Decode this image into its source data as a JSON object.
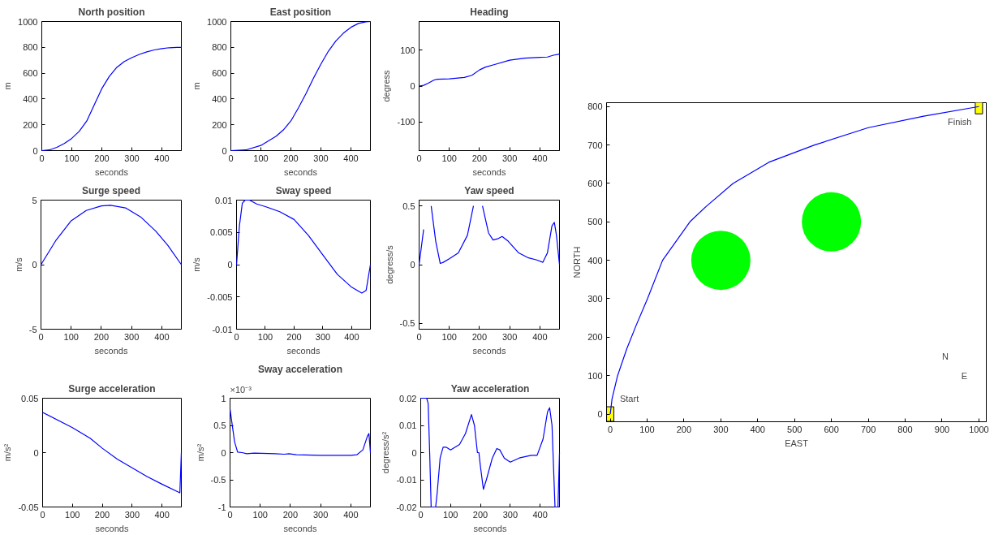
{
  "chart_data": [
    {
      "type": "line",
      "title": "North position",
      "xlabel": "seconds",
      "ylabel": "m",
      "xlim": [
        0,
        465
      ],
      "xticks": [
        0,
        100,
        200,
        300,
        400
      ],
      "ylim": [
        0,
        1000
      ],
      "yticks": [
        0,
        200,
        400,
        600,
        800,
        1000
      ],
      "color": "#0000ff",
      "x": [
        0,
        25,
        50,
        75,
        100,
        125,
        150,
        175,
        200,
        225,
        250,
        275,
        300,
        325,
        350,
        375,
        400,
        425,
        450,
        465
      ],
      "values": [
        0,
        5,
        25,
        55,
        95,
        150,
        230,
        355,
        480,
        575,
        645,
        690,
        720,
        745,
        765,
        780,
        790,
        797,
        800,
        800
      ]
    },
    {
      "type": "line",
      "title": "East position",
      "xlabel": "seconds",
      "ylabel": "m",
      "xlim": [
        0,
        465
      ],
      "xticks": [
        0,
        100,
        200,
        300,
        400
      ],
      "ylim": [
        0,
        1000
      ],
      "yticks": [
        0,
        200,
        400,
        600,
        800,
        1000
      ],
      "color": "#0000ff",
      "x": [
        0,
        50,
        100,
        150,
        175,
        200,
        225,
        250,
        275,
        300,
        325,
        350,
        375,
        400,
        425,
        450,
        465
      ],
      "values": [
        0,
        5,
        40,
        110,
        160,
        230,
        330,
        440,
        560,
        670,
        770,
        850,
        910,
        955,
        985,
        998,
        1000
      ]
    },
    {
      "type": "line",
      "title": "Heading",
      "xlabel": "seconds",
      "ylabel": "degress",
      "xlim": [
        0,
        465
      ],
      "xticks": [
        0,
        100,
        200,
        300,
        400
      ],
      "ylim": [
        -180,
        180
      ],
      "yticks": [
        -100,
        0,
        100
      ],
      "color": "#0000ff",
      "x": [
        0,
        15,
        30,
        50,
        60,
        100,
        150,
        175,
        200,
        220,
        250,
        300,
        350,
        400,
        425,
        445,
        465
      ],
      "values": [
        0,
        2,
        8,
        17,
        19,
        20,
        24,
        30,
        45,
        53,
        60,
        72,
        78,
        80,
        81,
        86,
        89
      ]
    },
    {
      "type": "line",
      "title": "Surge speed",
      "xlabel": "seconds",
      "ylabel": "m/s",
      "xlim": [
        0,
        465
      ],
      "xticks": [
        0,
        100,
        200,
        300,
        400
      ],
      "ylim": [
        -5,
        5
      ],
      "yticks": [
        -5,
        0,
        5
      ],
      "color": "#0000ff",
      "x": [
        0,
        50,
        100,
        150,
        200,
        230,
        280,
        330,
        380,
        420,
        465
      ],
      "values": [
        0,
        1.9,
        3.4,
        4.2,
        4.55,
        4.6,
        4.4,
        3.7,
        2.6,
        1.5,
        0
      ]
    },
    {
      "type": "line",
      "title": "Sway speed",
      "xlabel": "seconds",
      "ylabel": "m/s",
      "xlim": [
        0,
        465
      ],
      "xticks": [
        0,
        100,
        200,
        300,
        400
      ],
      "ylim": [
        -0.01,
        0.01
      ],
      "yticks": [
        -0.01,
        -0.005,
        0,
        0.005,
        0.01
      ],
      "color": "#0000ff",
      "x": [
        0,
        10,
        20,
        30,
        45,
        70,
        100,
        150,
        200,
        250,
        300,
        350,
        400,
        435,
        450,
        465
      ],
      "values": [
        0,
        0.006,
        0.0095,
        0.01,
        0.01,
        0.0094,
        0.009,
        0.0082,
        0.007,
        0.0045,
        0.0015,
        -0.0015,
        -0.0035,
        -0.0044,
        -0.004,
        0
      ]
    },
    {
      "type": "line",
      "title": "Yaw speed",
      "xlabel": "seconds",
      "ylabel": "degress/s",
      "xlim": [
        0,
        465
      ],
      "xticks": [
        0,
        100,
        200,
        300,
        400
      ],
      "ylim": [
        -0.55,
        0.55
      ],
      "yticks": [
        -0.5,
        0,
        0.5
      ],
      "color": "#0000ff",
      "x": [
        0,
        15,
        30,
        40,
        55,
        70,
        80,
        100,
        130,
        160,
        180,
        195,
        210,
        230,
        245,
        260,
        275,
        295,
        330,
        360,
        390,
        410,
        425,
        440,
        448,
        455,
        465
      ],
      "values": [
        0,
        0.3,
        null,
        0.5,
        0.2,
        0.01,
        0.02,
        0.05,
        0.1,
        0.25,
        0.5,
        null,
        0.5,
        0.27,
        0.21,
        0.22,
        0.24,
        0.2,
        0.1,
        0.06,
        0.04,
        0.02,
        0.1,
        0.33,
        0.36,
        0.25,
        0
      ]
    },
    {
      "type": "line",
      "title": "Surge acceleration",
      "xlabel": "seconds",
      "ylabel": "m/s²",
      "xlim": [
        0,
        465
      ],
      "xticks": [
        0,
        100,
        200,
        300,
        400
      ],
      "ylim": [
        -0.05,
        0.05
      ],
      "yticks": [
        -0.05,
        0,
        0.05
      ],
      "color": "#0000ff",
      "x": [
        0,
        100,
        160,
        200,
        250,
        300,
        350,
        400,
        460,
        465
      ],
      "values": [
        0.037,
        0.023,
        0.013,
        0.004,
        -0.006,
        -0.014,
        -0.022,
        -0.029,
        -0.037,
        0
      ]
    },
    {
      "type": "line",
      "title": "Sway acceleration",
      "xlabel": "seconds",
      "ylabel": "m/s²",
      "xlim": [
        0,
        465
      ],
      "xticks": [
        0,
        100,
        200,
        300,
        400
      ],
      "ylim": [
        -1,
        1
      ],
      "yticks": [
        -1,
        -0.5,
        0,
        0.5,
        1
      ],
      "color": "#0000ff",
      "annotations": [
        "×10⁻³"
      ],
      "x": [
        0,
        5,
        15,
        25,
        40,
        55,
        80,
        150,
        180,
        195,
        220,
        300,
        400,
        420,
        440,
        455,
        460,
        465
      ],
      "values": [
        0.8,
        0.6,
        0.2,
        0.01,
        0,
        -0.02,
        -0.01,
        -0.02,
        -0.03,
        -0.02,
        -0.04,
        -0.05,
        -0.05,
        -0.04,
        0.05,
        0.3,
        0.35,
        0
      ]
    },
    {
      "type": "line",
      "title": "Yaw acceleration",
      "xlabel": "seconds",
      "ylabel": "degress/s²",
      "xlim": [
        0,
        465
      ],
      "xticks": [
        0,
        100,
        200,
        300,
        400
      ],
      "ylim": [
        -0.02,
        0.02
      ],
      "yticks": [
        -0.02,
        -0.01,
        0,
        0.01,
        0.02
      ],
      "color": "#0000ff",
      "x": [
        0,
        20,
        25,
        30,
        35,
        50,
        55,
        65,
        75,
        85,
        100,
        130,
        150,
        170,
        180,
        190,
        195,
        200,
        210,
        220,
        240,
        255,
        265,
        280,
        300,
        330,
        370,
        390,
        410,
        425,
        432,
        440,
        450,
        460,
        465
      ],
      "values": [
        0.02,
        0.02,
        0.018,
        0,
        -0.02,
        -0.02,
        -0.015,
        -0.002,
        0.002,
        0.002,
        0.001,
        0.003,
        0.007,
        0.014,
        0.01,
        0,
        0,
        -0.005,
        -0.0135,
        -0.01,
        -0.002,
        0.0015,
        0.001,
        -0.002,
        -0.0035,
        -0.002,
        -0.001,
        -0.001,
        0.005,
        0.015,
        0.0165,
        0.01,
        -0.02,
        -0.02,
        0
      ]
    },
    {
      "type": "line",
      "xlabel": "EAST",
      "ylabel": "NORTH",
      "xlim": [
        -10,
        1020
      ],
      "xticks": [
        0,
        100,
        200,
        300,
        400,
        500,
        600,
        700,
        800,
        900,
        1000
      ],
      "ylim": [
        -20,
        810
      ],
      "yticks": [
        0,
        100,
        200,
        300,
        400,
        500,
        600,
        700,
        800
      ],
      "series": [
        {
          "type": "line",
          "color": "#0000ff",
          "x": [
            0,
            5,
            20,
            45,
            70,
            101,
            142,
            216,
            260,
            333,
            430,
            554,
            700,
            850,
            1000
          ],
          "values": [
            0,
            40,
            100,
            170,
            230,
            300,
            400,
            500,
            540,
            600,
            655,
            700,
            745,
            775,
            800
          ]
        },
        {
          "type": "bubble",
          "color": "#00ff00",
          "x": [
            300,
            600
          ],
          "values": [
            400,
            500
          ],
          "sizes": [
            1,
            1
          ]
        },
        {
          "type": "scatter",
          "marker": "square",
          "color": "#ffff00",
          "x": [
            0,
            1000
          ],
          "values": [
            0,
            800
          ]
        }
      ],
      "annotations": [
        "Start",
        "Finish",
        "N",
        "E"
      ]
    }
  ]
}
